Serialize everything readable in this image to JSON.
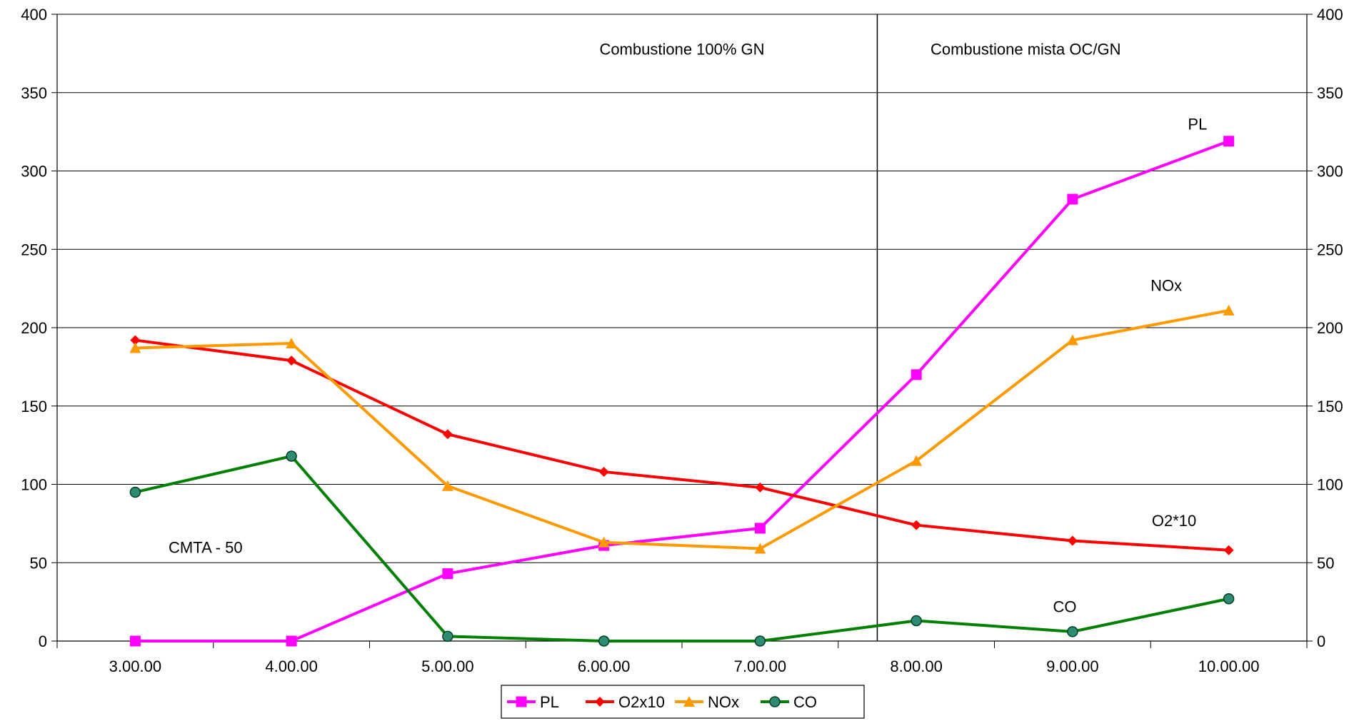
{
  "chart_data": {
    "type": "line",
    "categories": [
      "3.00.00",
      "4.00.00",
      "5.00.00",
      "6.00.00",
      "7.00.00",
      "8.00.00",
      "9.00.00",
      "10.00.00"
    ],
    "ylim": [
      0,
      400
    ],
    "yticks": [
      0,
      50,
      100,
      150,
      200,
      250,
      300,
      350,
      400
    ],
    "ytick_labels": [
      "0",
      "50",
      "100",
      "150",
      "200",
      "250",
      "300",
      "350",
      "400"
    ],
    "y2ticks": [
      0,
      50,
      100,
      150,
      200,
      250,
      300,
      350,
      400
    ],
    "y2tick_labels": [
      "0",
      "50",
      "100",
      "150",
      "200",
      "250",
      "300",
      "350",
      "400"
    ],
    "grid": "horizontal",
    "legend_position": "bottom",
    "divider_after_index": 4.75,
    "series": [
      {
        "name": "PL",
        "color": "#ff00ff",
        "marker": "square",
        "values": [
          0,
          0,
          43,
          61,
          72,
          170,
          282,
          319
        ]
      },
      {
        "name": "O2x10",
        "color": "#ff0000",
        "marker": "diamond",
        "values": [
          192,
          179,
          132,
          108,
          98,
          74,
          64,
          58
        ]
      },
      {
        "name": "NOx",
        "color": "#ff9900",
        "marker": "triangle",
        "values": [
          187,
          190,
          99,
          63,
          59,
          115,
          192,
          211
        ]
      },
      {
        "name": "CO",
        "color": "#008000",
        "marker": "circle",
        "values": [
          95,
          118,
          3,
          0,
          0,
          13,
          6,
          27
        ]
      }
    ],
    "annotations": [
      {
        "text": "Combustione 100% GN",
        "x_index": 3.5,
        "y": 378
      },
      {
        "text": "Combustione mista OC/GN",
        "x_index": 5.7,
        "y": 378
      },
      {
        "text": "PL",
        "x_index": 6.8,
        "y": 330
      },
      {
        "text": "NOx",
        "x_index": 6.6,
        "y": 227
      },
      {
        "text": "O2*10",
        "x_index": 6.65,
        "y": 77
      },
      {
        "text": "CMTA - 50",
        "x_index": 0.45,
        "y": 60
      },
      {
        "text": "CO",
        "x_index": 5.95,
        "y": 22
      }
    ]
  }
}
